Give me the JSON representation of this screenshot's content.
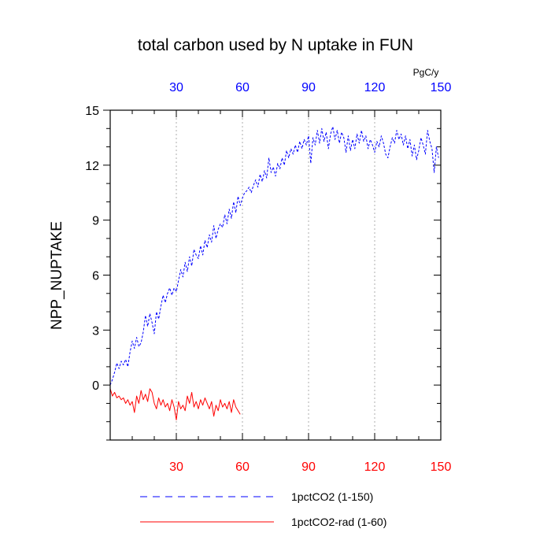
{
  "chart_data": {
    "type": "line",
    "title": "total carbon used by N uptake in FUN",
    "ylabel": "NPP_NUPTAKE",
    "xlabel": "",
    "top_axis_units": "PgC/y",
    "ylim": [
      -3,
      15
    ],
    "xlim": [
      0,
      150
    ],
    "y_ticks": [
      0,
      3,
      6,
      9,
      12,
      15
    ],
    "x_ticks": [
      30,
      60,
      90,
      120,
      150
    ],
    "x_tick_labels_top": [
      "30",
      "60",
      "90",
      "120",
      "150"
    ],
    "x_tick_labels_bottom": [
      "30",
      "60",
      "90",
      "120",
      "150"
    ],
    "y_tick_labels": [
      "0",
      "3",
      "6",
      "9",
      "12",
      "15"
    ],
    "grid": "vertical dotted at x ticks",
    "legend_position": "bottom",
    "colors": {
      "series1": "#0000ff",
      "series2": "#ff0000",
      "top_ticks": "#0000ff",
      "bottom_ticks": "#ff0000"
    },
    "series": [
      {
        "name": "1pctCO2 (1-150)",
        "color": "#0000ff",
        "style": "dashed",
        "x_start": 1,
        "values": [
          0.0,
          0.3,
          0.7,
          1.2,
          0.9,
          1.3,
          1.1,
          1.4,
          1.0,
          1.8,
          2.4,
          2.0,
          2.6,
          2.1,
          2.3,
          2.9,
          3.8,
          3.2,
          3.9,
          3.4,
          2.8,
          4.0,
          3.6,
          4.3,
          4.9,
          4.5,
          5.0,
          5.3,
          4.9,
          5.3,
          5.1,
          5.7,
          6.3,
          5.9,
          6.7,
          6.2,
          7.0,
          6.5,
          7.4,
          7.1,
          6.9,
          7.6,
          7.1,
          7.9,
          7.5,
          8.2,
          7.8,
          8.7,
          8.0,
          8.5,
          8.8,
          8.6,
          9.3,
          8.8,
          9.6,
          9.1,
          10.0,
          9.4,
          10.3,
          9.8,
          10.2,
          10.5,
          10.6,
          10.8,
          10.5,
          10.9,
          11.2,
          10.8,
          11.5,
          11.1,
          11.7,
          11.3,
          12.4,
          11.6,
          11.9,
          11.4,
          12.1,
          11.8,
          12.4,
          12.0,
          12.8,
          12.4,
          12.9,
          12.6,
          13.1,
          12.7,
          13.3,
          12.9,
          13.4,
          13.1,
          13.6,
          12.1,
          13.5,
          13.1,
          13.9,
          13.2,
          14.0,
          13.3,
          13.8,
          12.9,
          13.7,
          14.1,
          13.4,
          13.9,
          13.2,
          13.8,
          13.5,
          12.7,
          13.6,
          12.8,
          13.4,
          12.9,
          13.7,
          13.2,
          13.9,
          13.3,
          13.6,
          12.9,
          13.4,
          13.1,
          12.7,
          13.3,
          13.0,
          13.6,
          13.2,
          12.6,
          12.4,
          13.0,
          13.5,
          13.2,
          13.9,
          13.4,
          13.7,
          13.1,
          13.6,
          12.9,
          13.4,
          12.5,
          13.1,
          12.3,
          12.8,
          13.5,
          13.1,
          12.6,
          13.9,
          13.3,
          12.9,
          11.6,
          13.0,
          12.4
        ]
      },
      {
        "name": "1pctCO2-rad (1-60)",
        "color": "#ff0000",
        "style": "solid",
        "x_start": 1,
        "values": [
          -0.2,
          -0.6,
          -0.4,
          -0.7,
          -0.6,
          -0.8,
          -0.7,
          -1.0,
          -0.8,
          -1.1,
          -0.9,
          -1.5,
          -0.6,
          -1.0,
          -0.3,
          -0.8,
          -0.5,
          -0.9,
          -0.2,
          -0.4,
          -1.0,
          -1.3,
          -0.7,
          -1.1,
          -0.8,
          -1.2,
          -1.0,
          -1.4,
          -0.8,
          -1.2,
          -1.9,
          -0.9,
          -1.3,
          -1.1,
          -1.4,
          -0.6,
          -1.0,
          -0.4,
          -1.2,
          -0.9,
          -1.3,
          -0.8,
          -1.1,
          -0.7,
          -1.0,
          -1.3,
          -0.9,
          -1.7,
          -1.1,
          -1.4,
          -0.8,
          -1.2,
          -1.0,
          -1.3,
          -0.9,
          -1.5,
          -0.8,
          -1.2,
          -1.4,
          -1.6
        ]
      }
    ]
  }
}
